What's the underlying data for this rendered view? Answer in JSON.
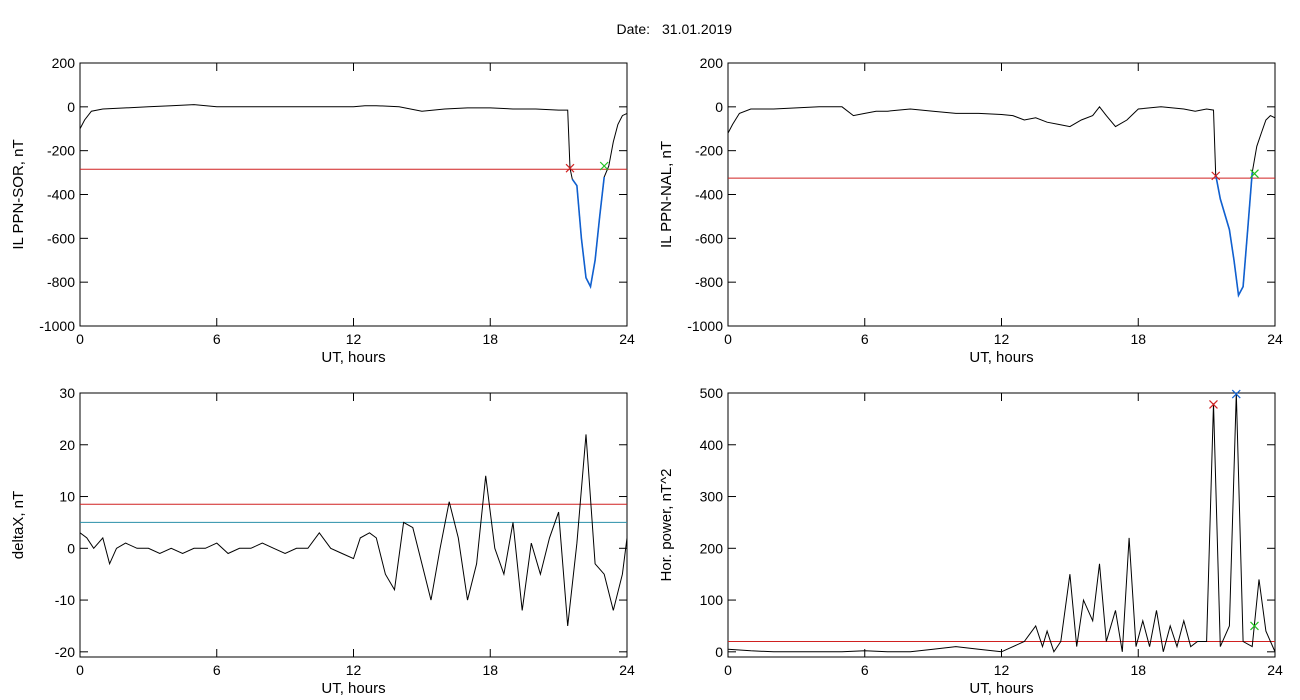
{
  "header": {
    "label": "Date:",
    "date": "31.01.2019"
  },
  "colors": {
    "red": "#d02020",
    "blue": "#1060d0",
    "green": "#20c020",
    "teal": "#2a8fa8",
    "line": "#000000"
  },
  "chart_data": [
    {
      "type": "line",
      "ylabel": "IL PPN-SOR, nT",
      "xlabel": "UT, hours",
      "xlim": [
        0,
        24
      ],
      "ylim": [
        -1000,
        200
      ],
      "xticks": [
        0,
        6,
        12,
        18,
        24
      ],
      "yticks": [
        -1000,
        -800,
        -600,
        -400,
        -200,
        0,
        200
      ],
      "hlines": [
        {
          "y": -285,
          "color": "red"
        }
      ],
      "series": [
        {
          "color": "black",
          "x": [
            0,
            0.2,
            0.5,
            1,
            2,
            3,
            4,
            5,
            6,
            7,
            8,
            9,
            10,
            11,
            12,
            12.5,
            13,
            14,
            15,
            16,
            17,
            18,
            19,
            20,
            21,
            21.4,
            21.5,
            21.6,
            21.8,
            22,
            22.2,
            22.4,
            22.6,
            22.8,
            23,
            23.2,
            23.4,
            23.6,
            23.8,
            24
          ],
          "y": [
            -100,
            -60,
            -20,
            -10,
            -5,
            0,
            5,
            10,
            0,
            0,
            0,
            0,
            0,
            0,
            0,
            5,
            5,
            0,
            -20,
            -10,
            -5,
            -5,
            -10,
            -10,
            -15,
            -15,
            -280,
            -330,
            -360,
            -600,
            -780,
            -820,
            -700,
            -500,
            -320,
            -270,
            -160,
            -80,
            -40,
            -30
          ]
        },
        {
          "color": "blue",
          "x": [
            21.6,
            21.8,
            22,
            22.2,
            22.4,
            22.6,
            22.8,
            23
          ],
          "y": [
            -330,
            -360,
            -600,
            -780,
            -820,
            -700,
            -500,
            -320
          ]
        }
      ],
      "markers": [
        {
          "x": 21.5,
          "y": -280,
          "color": "red"
        },
        {
          "x": 23.0,
          "y": -270,
          "color": "green"
        }
      ]
    },
    {
      "type": "line",
      "ylabel": "IL PPN-NAL, nT",
      "xlabel": "UT, hours",
      "xlim": [
        0,
        24
      ],
      "ylim": [
        -1000,
        200
      ],
      "xticks": [
        0,
        6,
        12,
        18,
        24
      ],
      "yticks": [
        -1000,
        -800,
        -600,
        -400,
        -200,
        0,
        200
      ],
      "hlines": [
        {
          "y": -325,
          "color": "red"
        }
      ],
      "series": [
        {
          "color": "black",
          "x": [
            0,
            0.2,
            0.5,
            1,
            2,
            3,
            4,
            5,
            5.5,
            6,
            6.5,
            7,
            8,
            9,
            10,
            11,
            12,
            12.5,
            13,
            13.5,
            14,
            14.5,
            15,
            15.5,
            16,
            16.3,
            16.6,
            17,
            17.5,
            18,
            19,
            20,
            20.5,
            21,
            21.3,
            21.4,
            21.6,
            22,
            22.2,
            22.4,
            22.6,
            22.8,
            23,
            23.2,
            23.4,
            23.6,
            23.8,
            24
          ],
          "y": [
            -120,
            -80,
            -30,
            -10,
            -10,
            -5,
            0,
            0,
            -40,
            -30,
            -20,
            -20,
            -10,
            -20,
            -30,
            -30,
            -35,
            -40,
            -60,
            -50,
            -70,
            -80,
            -90,
            -60,
            -40,
            0,
            -40,
            -90,
            -60,
            -10,
            0,
            -10,
            -20,
            -10,
            -15,
            -310,
            -420,
            -560,
            -700,
            -860,
            -820,
            -560,
            -300,
            -180,
            -120,
            -60,
            -40,
            -50
          ]
        },
        {
          "color": "blue",
          "x": [
            21.4,
            21.6,
            22,
            22.2,
            22.4,
            22.6,
            22.8,
            23
          ],
          "y": [
            -310,
            -420,
            -560,
            -700,
            -860,
            -820,
            -560,
            -300
          ]
        }
      ],
      "markers": [
        {
          "x": 21.4,
          "y": -315,
          "color": "red"
        },
        {
          "x": 23.1,
          "y": -305,
          "color": "green"
        }
      ]
    },
    {
      "type": "line",
      "ylabel": "deltaX, nT",
      "xlabel": "UT, hours",
      "xlim": [
        0,
        24
      ],
      "ylim": [
        -21,
        30
      ],
      "xticks": [
        0,
        6,
        12,
        18,
        24
      ],
      "yticks": [
        -20,
        -10,
        0,
        10,
        20,
        30
      ],
      "hlines": [
        {
          "y": 8.5,
          "color": "red"
        },
        {
          "y": 5,
          "color": "teal"
        }
      ],
      "series": [
        {
          "color": "black",
          "x": [
            0,
            0.3,
            0.6,
            1,
            1.3,
            1.6,
            2,
            2.5,
            3,
            3.5,
            4,
            4.5,
            5,
            5.5,
            6,
            6.5,
            7,
            7.5,
            8,
            8.5,
            9,
            9.5,
            10,
            10.5,
            11,
            11.5,
            12,
            12.3,
            12.7,
            13,
            13.4,
            13.8,
            14.2,
            14.6,
            15,
            15.4,
            15.8,
            16.2,
            16.6,
            17,
            17.4,
            17.8,
            18.2,
            18.6,
            19,
            19.4,
            19.8,
            20.2,
            20.6,
            21,
            21.4,
            21.8,
            22.2,
            22.6,
            23,
            23.4,
            23.8,
            24
          ],
          "y": [
            3,
            2,
            0,
            2,
            -3,
            0,
            1,
            0,
            0,
            -1,
            0,
            -1,
            0,
            0,
            1,
            -1,
            0,
            0,
            1,
            0,
            -1,
            0,
            0,
            3,
            0,
            -1,
            -2,
            2,
            3,
            2,
            -5,
            -8,
            5,
            4,
            -3,
            -10,
            0,
            9,
            2,
            -10,
            -3,
            14,
            0,
            -5,
            5,
            -12,
            1,
            -5,
            2,
            7,
            -15,
            1,
            22,
            -3,
            -5,
            -12,
            -5,
            2
          ]
        }
      ],
      "markers": []
    },
    {
      "type": "line",
      "ylabel": "Hor. power, nT^2",
      "xlabel": "UT, hours",
      "xlim": [
        0,
        24
      ],
      "ylim": [
        -10,
        500
      ],
      "xticks": [
        0,
        6,
        12,
        18,
        24
      ],
      "yticks": [
        0,
        100,
        200,
        300,
        400,
        500
      ],
      "hlines": [
        {
          "y": 20,
          "color": "red"
        }
      ],
      "series": [
        {
          "color": "black",
          "x": [
            0,
            1,
            2,
            3,
            4,
            5,
            6,
            7,
            8,
            9,
            10,
            11,
            12,
            13,
            13.5,
            13.8,
            14,
            14.3,
            14.6,
            15,
            15.3,
            15.6,
            16,
            16.3,
            16.6,
            17,
            17.3,
            17.6,
            17.9,
            18.2,
            18.5,
            18.8,
            19.1,
            19.4,
            19.7,
            20,
            20.3,
            20.6,
            21,
            21.3,
            21.6,
            22,
            22.3,
            22.6,
            23,
            23.3,
            23.6,
            24
          ],
          "y": [
            5,
            2,
            0,
            0,
            0,
            0,
            2,
            0,
            0,
            5,
            10,
            5,
            0,
            20,
            50,
            10,
            40,
            0,
            20,
            150,
            10,
            100,
            60,
            170,
            20,
            80,
            0,
            220,
            10,
            60,
            10,
            80,
            0,
            50,
            10,
            60,
            10,
            20,
            20,
            480,
            10,
            50,
            500,
            20,
            10,
            140,
            40,
            0
          ]
        }
      ],
      "markers": [
        {
          "x": 21.3,
          "y": 478,
          "color": "red"
        },
        {
          "x": 22.3,
          "y": 498,
          "color": "blue"
        },
        {
          "x": 23.1,
          "y": 50,
          "color": "green"
        }
      ]
    }
  ]
}
